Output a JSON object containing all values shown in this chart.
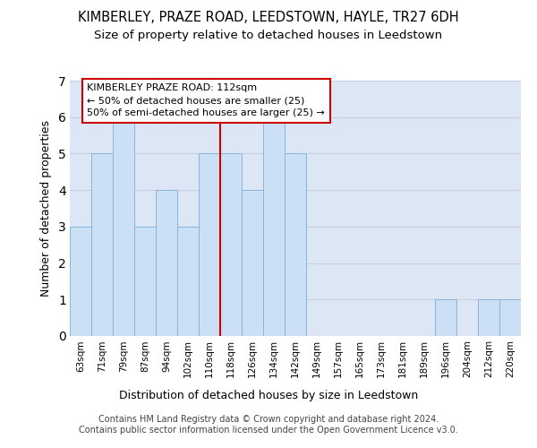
{
  "title": "KIMBERLEY, PRAZE ROAD, LEEDSTOWN, HAYLE, TR27 6DH",
  "subtitle": "Size of property relative to detached houses in Leedstown",
  "xlabel": "Distribution of detached houses by size in Leedstown",
  "ylabel": "Number of detached properties",
  "categories": [
    "63sqm",
    "71sqm",
    "79sqm",
    "87sqm",
    "94sqm",
    "102sqm",
    "110sqm",
    "118sqm",
    "126sqm",
    "134sqm",
    "142sqm",
    "149sqm",
    "157sqm",
    "165sqm",
    "173sqm",
    "181sqm",
    "189sqm",
    "196sqm",
    "204sqm",
    "212sqm",
    "220sqm"
  ],
  "values": [
    3,
    5,
    6,
    3,
    4,
    3,
    5,
    5,
    4,
    6,
    5,
    0,
    0,
    0,
    0,
    0,
    0,
    1,
    0,
    1,
    1
  ],
  "bar_color": "#cce0f5",
  "bar_edge_color": "#8ab4d8",
  "vline_color": "#cc0000",
  "vline_pos": 6.5,
  "annotation_text": "KIMBERLEY PRAZE ROAD: 112sqm\n← 50% of detached houses are smaller (25)\n50% of semi-detached houses are larger (25) →",
  "annotation_box_color": "#ffffff",
  "annotation_box_edge_color": "#cc0000",
  "ylim": [
    0,
    7
  ],
  "yticks": [
    0,
    1,
    2,
    3,
    4,
    5,
    6,
    7
  ],
  "grid_color": "#c8cfe0",
  "bg_color": "#dce6f5",
  "footer": "Contains HM Land Registry data © Crown copyright and database right 2024.\nContains public sector information licensed under the Open Government Licence v3.0.",
  "title_fontsize": 10.5,
  "subtitle_fontsize": 9.5,
  "tick_fontsize": 7.5,
  "ylabel_fontsize": 9,
  "xlabel_fontsize": 9,
  "footer_fontsize": 7,
  "annot_fontsize": 8
}
